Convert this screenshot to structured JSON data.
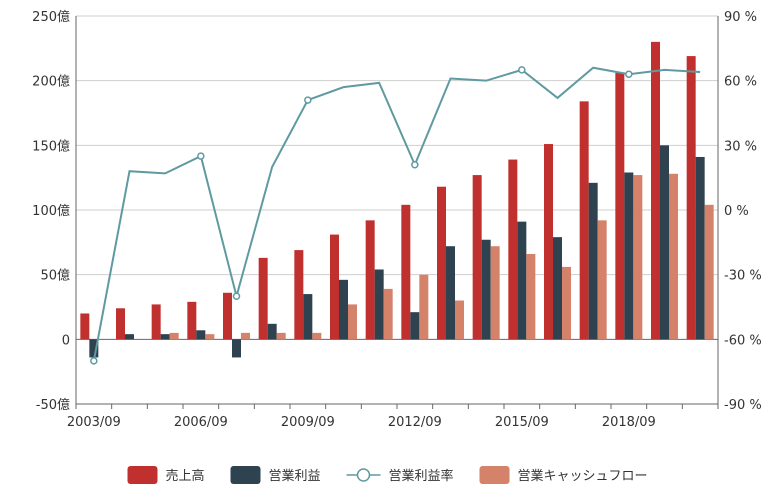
{
  "chart_data": {
    "type": "bar",
    "categories": [
      "2003/09",
      "2004/09",
      "2005/09",
      "2006/09",
      "2007/09",
      "2008/09",
      "2009/09",
      "2010/09",
      "2011/09",
      "2012/09",
      "2013/09",
      "2014/09",
      "2015/09",
      "2016/09",
      "2017/09",
      "2018/09",
      "2019/09",
      "2020/09"
    ],
    "x_tick_labels": [
      "2003/09",
      "2006/09",
      "2009/09",
      "2012/09",
      "2015/09",
      "2018/09"
    ],
    "y_left": {
      "ylim": [
        -50,
        250
      ],
      "ticks": [
        -50,
        0,
        50,
        100,
        150,
        200,
        250
      ],
      "tick_labels": [
        "-50億",
        "0",
        "50億",
        "100億",
        "150億",
        "200億",
        "250億"
      ]
    },
    "y_right": {
      "ylim": [
        -90,
        90
      ],
      "ticks": [
        -90,
        -60,
        -30,
        0,
        30,
        60,
        90
      ],
      "tick_labels": [
        "-90 %",
        "-60 %",
        "-30 %",
        "0 %",
        "30 %",
        "60 %",
        "90 %"
      ]
    },
    "series": [
      {
        "name": "売上高",
        "kind": "bar",
        "color": "#c0302e",
        "values": [
          20,
          24,
          27,
          29,
          36,
          63,
          69,
          81,
          92,
          104,
          118,
          127,
          139,
          151,
          184,
          206,
          230,
          219
        ]
      },
      {
        "name": "営業利益",
        "kind": "bar",
        "color": "#2e4250",
        "values": [
          -14,
          4,
          4,
          7,
          -14,
          12,
          35,
          46,
          54,
          21,
          72,
          77,
          91,
          79,
          121,
          129,
          150,
          141
        ]
      },
      {
        "name": "営業利益率",
        "kind": "line",
        "axis": "right",
        "color": "#5f9aa0",
        "values": [
          -70,
          18,
          17,
          25,
          -40,
          20,
          51,
          57,
          59,
          21,
          61,
          60,
          65,
          52,
          66,
          63,
          65,
          64
        ],
        "markers_at": [
          0,
          3,
          4,
          6,
          9,
          12,
          15
        ]
      },
      {
        "name": "営業キャッシュフロー",
        "kind": "bar",
        "color": "#d4826a",
        "values": [
          0,
          0,
          5,
          4,
          5,
          5,
          5,
          27,
          39,
          50,
          30,
          72,
          66,
          56,
          92,
          127,
          128,
          104
        ]
      }
    ],
    "legend": {
      "placement": "bottom-center",
      "order": [
        "売上高",
        "営業利益",
        "営業利益率",
        "営業キャッシュフロー"
      ]
    },
    "grid": true
  }
}
